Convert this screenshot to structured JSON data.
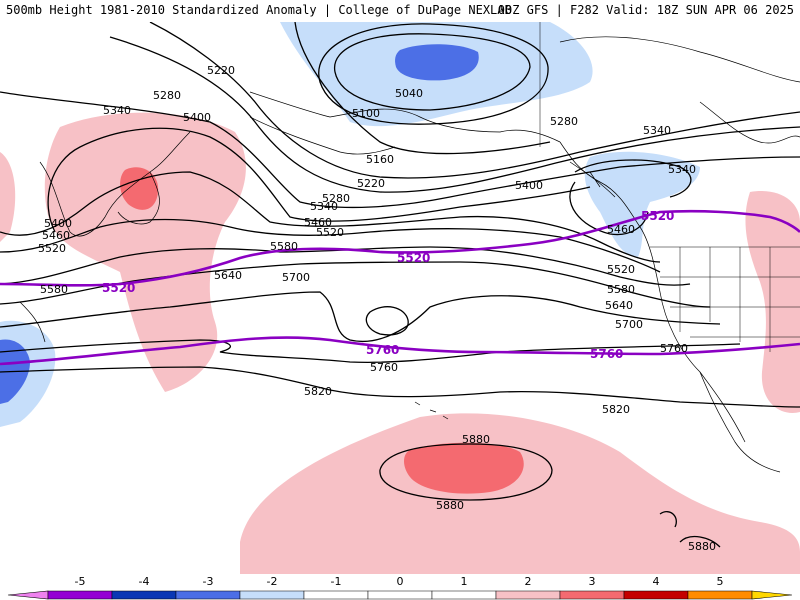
{
  "header": {
    "title_left": "500mb Height 1981-2010 Standardized Anomaly | College of DuPage NEXLAB",
    "title_right": "00Z GFS | F282 Valid: 18Z SUN APR 06 2025"
  },
  "colors": {
    "anom_pos_1": "#f7c1c6",
    "anom_pos_2": "#f46a70",
    "anom_neg_1": "#c6defa",
    "anom_neg_2": "#4c6fe6",
    "highlight_contour": "#8a00c2",
    "contour": "#000000",
    "coastline": "#000000"
  },
  "contour_labels": {
    "c5040": "5040",
    "c5100": "5100",
    "c5160": "5160",
    "c5220a": "5220",
    "c5220b": "5220",
    "c5280a": "5280",
    "c5280b": "5280",
    "c5280c": "5280",
    "c5340a": "5340",
    "c5340b": "5340",
    "c5340c": "5340",
    "c5340d": "5340",
    "c5400a": "5400",
    "c5400b": "5400",
    "c5400c": "5400",
    "c5460a": "5460",
    "c5460b": "5460",
    "c5460c": "5460",
    "c5520a": "5520",
    "c5520b": "5520",
    "c5520c": "5520",
    "c5580a": "5580",
    "c5580b": "5580",
    "c5580c": "5580",
    "c5640a": "5640",
    "c5640b": "5640",
    "c5700a": "5700",
    "c5700b": "5700",
    "c5760a": "5760",
    "c5760b": "5760",
    "c5820a": "5820",
    "c5820b": "5820",
    "c5880a": "5880",
    "c5880b": "5880",
    "c5880c": "5880",
    "h5520a": "5520",
    "h5520b": "5520",
    "h5520c": "5520",
    "h5760a": "5760",
    "h5760b": "5760"
  },
  "colorbar": {
    "ticks": [
      "-5",
      "-4",
      "-3",
      "-2",
      "-1",
      "0",
      "1",
      "2",
      "3",
      "4",
      "5"
    ],
    "colors": [
      "#ee82ee",
      "#9400d3",
      "#0a37b4",
      "#4b6ee6",
      "#c6defa",
      "#ffffff",
      "#ffffff",
      "#f7c1c6",
      "#f46a70",
      "#c40000",
      "#ff8c00",
      "#ffd700"
    ]
  }
}
